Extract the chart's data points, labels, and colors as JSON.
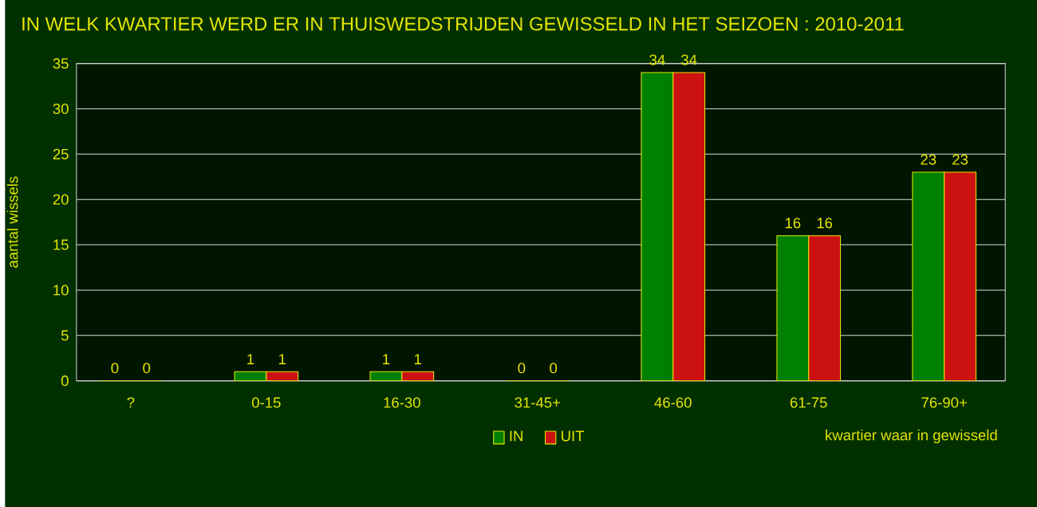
{
  "chart_data": {
    "type": "bar",
    "title": "IN WELK KWARTIER WERD ER IN THUISWEDSTRIJDEN GEWISSELD IN HET SEIZOEN : 2010-2011",
    "xlabel": "kwartier waar in gewisseld",
    "ylabel": "aantal wissels",
    "categories": [
      "?",
      "0-15",
      "16-30",
      "31-45+",
      "46-60",
      "61-75",
      "76-90+"
    ],
    "series": [
      {
        "name": "IN",
        "color": "#008000",
        "values": [
          0,
          1,
          1,
          0,
          34,
          16,
          23
        ]
      },
      {
        "name": "UIT",
        "color": "#cc1111",
        "values": [
          0,
          1,
          1,
          0,
          34,
          16,
          23
        ]
      }
    ],
    "ylim": [
      0,
      35
    ],
    "yticks": [
      0,
      5,
      10,
      15,
      20,
      25,
      30,
      35
    ],
    "grid": "y",
    "legend": "bottom",
    "data_labels": true
  }
}
